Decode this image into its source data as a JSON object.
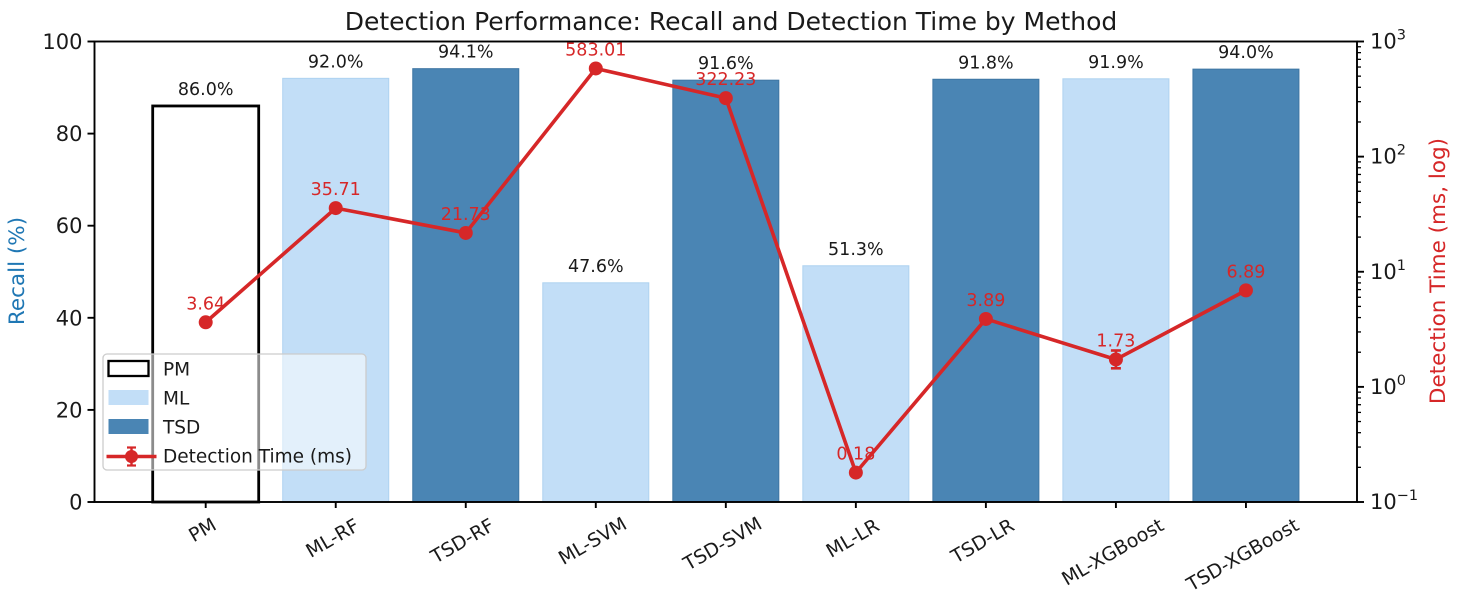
{
  "chart_data": {
    "type": "bar+line",
    "title": "Detection Performance: Recall and Detection Time by Method",
    "categories": [
      "PM",
      "ML-RF",
      "TSD-RF",
      "ML-SVM",
      "TSD-SVM",
      "ML-LR",
      "TSD-LR",
      "ML-XGBoost",
      "TSD-XGBoost"
    ],
    "bar_series": {
      "name": "Recall",
      "values": [
        86.0,
        92.0,
        94.1,
        47.6,
        91.6,
        51.3,
        91.8,
        91.9,
        94.0
      ],
      "labels": [
        "86.0%",
        "92.0%",
        "94.1%",
        "47.6%",
        "91.6%",
        "51.3%",
        "91.8%",
        "91.9%",
        "94.0%"
      ],
      "groups": [
        "PM",
        "ML",
        "TSD",
        "ML",
        "TSD",
        "ML",
        "TSD",
        "ML",
        "TSD"
      ]
    },
    "line_series": {
      "name": "Detection Time (ms)",
      "values": [
        3.64,
        35.71,
        21.73,
        583.01,
        322.23,
        0.18,
        3.89,
        1.73,
        6.89
      ],
      "labels": [
        "3.64",
        "35.71",
        "21.73",
        "583.01",
        "322.23",
        "0.18",
        "3.89",
        "1.73",
        "6.89"
      ],
      "error_bars": [
        {
          "index": 7,
          "low": 1.45,
          "high": 2.07
        }
      ]
    },
    "left_axis": {
      "label": "Recall (%)",
      "ticks": [
        0,
        20,
        40,
        60,
        80,
        100
      ],
      "range": [
        0,
        100
      ],
      "color": "#1f77b4"
    },
    "right_axis": {
      "label": "Detection Time (ms, log)",
      "scale": "log",
      "base": "10",
      "exponents": [
        -1,
        0,
        1,
        2,
        3
      ],
      "range": [
        0.1,
        1000
      ],
      "color": "#d62728"
    },
    "legend": {
      "items": [
        {
          "label": "PM",
          "swatch": "PM"
        },
        {
          "label": "ML",
          "swatch": "ML"
        },
        {
          "label": "TSD",
          "swatch": "TSD"
        },
        {
          "label": "Detection Time (ms)",
          "swatch": "errorbar"
        }
      ],
      "position": "lower-left"
    },
    "colors": {
      "pm_fill": "#ffffff",
      "pm_edge": "#000000",
      "ml_fill": "#c2def7",
      "tsd_fill": "#4a85b4",
      "line": "#d62728",
      "text": "#1a1a1a"
    },
    "grid": "off"
  }
}
